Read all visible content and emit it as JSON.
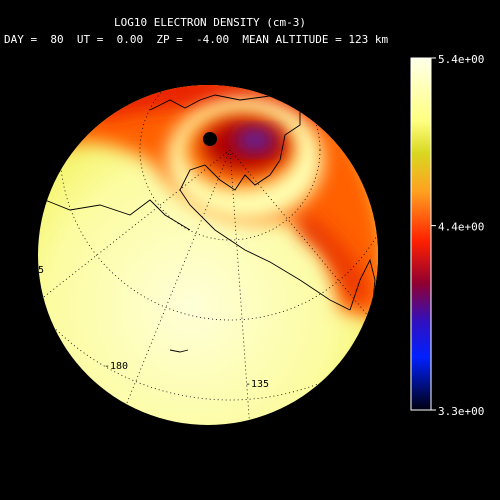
{
  "header": {
    "title": "LOG10 ELECTRON DENSITY (cm-3)",
    "subtitle": "DAY =  80  UT =  0.00  ZP =  -4.00  MEAN ALTITUDE = 123 km"
  },
  "colorbar": {
    "ticks": [
      {
        "value": 5.4,
        "label": "5.4e+00"
      },
      {
        "value": 4.4,
        "label": "4.4e+00"
      },
      {
        "value": 3.3,
        "label": "3.3e+00"
      }
    ]
  },
  "map": {
    "labels": [
      "-180",
      "-135",
      "5"
    ]
  }
}
